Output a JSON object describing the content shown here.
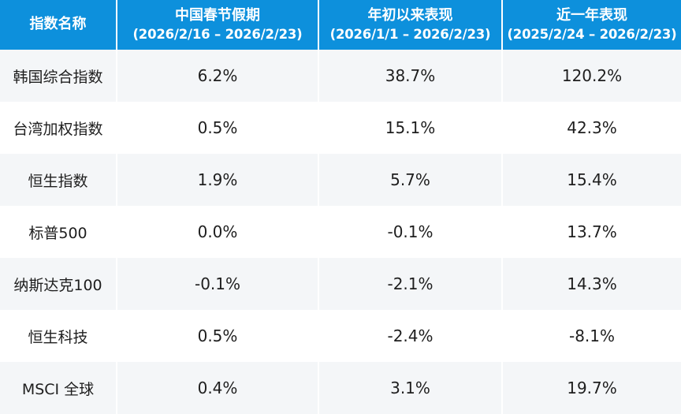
{
  "table": {
    "header": {
      "name_col": "指数名称",
      "cols": [
        {
          "title": "中国春节假期",
          "range": "(2026/2/16 – 2026/2/23)"
        },
        {
          "title": "年初以来表现",
          "range": "(2026/1/1 – 2026/2/23)"
        },
        {
          "title": "近一年表现",
          "range": "(2025/2/24 – 2026/2/23)"
        }
      ]
    },
    "rows": [
      {
        "name": "韩国综合指数",
        "values": [
          "6.2%",
          "38.7%",
          "120.2%"
        ]
      },
      {
        "name": "台湾加权指数",
        "values": [
          "0.5%",
          "15.1%",
          "42.3%"
        ]
      },
      {
        "name": "恒生指数",
        "values": [
          "1.9%",
          "5.7%",
          "15.4%"
        ]
      },
      {
        "name": "标普500",
        "values": [
          "0.0%",
          "-0.1%",
          "13.7%"
        ]
      },
      {
        "name": "纳斯达克100",
        "values": [
          "-0.1%",
          "-2.1%",
          "14.3%"
        ]
      },
      {
        "name": "恒生科技",
        "values": [
          "0.5%",
          "-2.4%",
          "-8.1%"
        ]
      },
      {
        "name": "MSCI 全球",
        "values": [
          "0.4%",
          "3.1%",
          "19.7%"
        ]
      }
    ],
    "colors": {
      "header_bg": "#0d90dc",
      "header_text": "#ffffff",
      "row_bg": "#ffffff",
      "row_alt_bg": "#f4f6f8",
      "body_text": "#1e1e1e"
    }
  },
  "chart_data": {
    "type": "table",
    "columns": [
      "指数名称",
      "中国春节假期 (2026/2/16 – 2026/2/23)",
      "年初以来表现 (2026/1/1 – 2026/2/23)",
      "近一年表现 (2025/2/24 – 2026/2/23)"
    ],
    "rows": [
      [
        "韩国综合指数",
        "6.2%",
        "38.7%",
        "120.2%"
      ],
      [
        "台湾加权指数",
        "0.5%",
        "15.1%",
        "42.3%"
      ],
      [
        "恒生指数",
        "1.9%",
        "5.7%",
        "15.4%"
      ],
      [
        "标普500",
        "0.0%",
        "-0.1%",
        "13.7%"
      ],
      [
        "纳斯达克100",
        "-0.1%",
        "-2.1%",
        "14.3%"
      ],
      [
        "恒生科技",
        "0.5%",
        "-2.4%",
        "-8.1%"
      ],
      [
        "MSCI 全球",
        "0.4%",
        "3.1%",
        "19.7%"
      ]
    ]
  }
}
